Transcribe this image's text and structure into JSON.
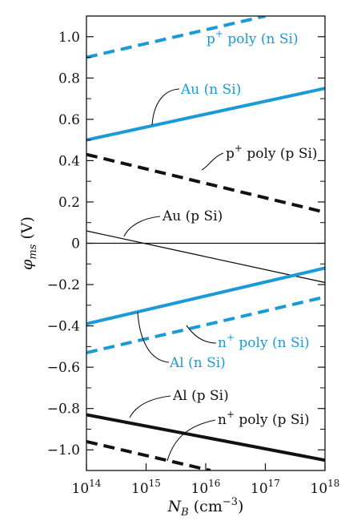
{
  "chart_data": {
    "type": "line",
    "xlabel": "N",
    "xlabel_sub": "B",
    "xlabel_unit_base": " (cm",
    "xlabel_unit_exp": "−3",
    "xlabel_unit_close": ")",
    "ylabel_main": "φ",
    "ylabel_sub": "ms",
    "ylabel_unit": " (V)",
    "x_scale": "log",
    "xlim": [
      100000000000000.0,
      1e+18
    ],
    "ylim": [
      -1.1,
      1.1
    ],
    "grid": false,
    "x_ticks": [
      {
        "value": 100000000000000.0,
        "base": "10",
        "exp": "14"
      },
      {
        "value": 1000000000000000.0,
        "base": "10",
        "exp": "15"
      },
      {
        "value": 1e+16,
        "base": "10",
        "exp": "16"
      },
      {
        "value": 1e+17,
        "base": "10",
        "exp": "17"
      },
      {
        "value": 1e+18,
        "base": "10",
        "exp": "18"
      }
    ],
    "y_ticks": [
      {
        "value": 1.0,
        "label": "1.0"
      },
      {
        "value": 0.8,
        "label": "0.8"
      },
      {
        "value": 0.6,
        "label": "0.6"
      },
      {
        "value": 0.4,
        "label": "0.4"
      },
      {
        "value": 0.2,
        "label": "0.2"
      },
      {
        "value": 0,
        "label": "0"
      },
      {
        "value": -0.2,
        "label": "−0.2"
      },
      {
        "value": -0.4,
        "label": "−0.4"
      },
      {
        "value": -0.6,
        "label": "−0.6"
      },
      {
        "value": -0.8,
        "label": "−0.8"
      },
      {
        "value": -1.0,
        "label": "−1.0"
      }
    ],
    "y_minor_step": 0.1,
    "zero_line": true,
    "colors": {
      "black": "#111111",
      "blue": "#1a9ad6"
    },
    "series": [
      {
        "label_parts": [
          {
            "t": "p"
          },
          {
            "t": "+",
            "sup": true
          },
          {
            "t": " poly (n Si)"
          }
        ],
        "color": "blue",
        "style": "dashed",
        "weight": "thick",
        "x": [
          100000000000000.0,
          1e+17
        ],
        "y": [
          0.9,
          1.1
        ]
      },
      {
        "label_parts": [
          {
            "t": "Au (n Si)"
          }
        ],
        "color": "blue",
        "style": "solid",
        "weight": "thick",
        "x": [
          100000000000000.0,
          1e+18
        ],
        "y": [
          0.5,
          0.75
        ]
      },
      {
        "label_parts": [
          {
            "t": "p"
          },
          {
            "t": "+",
            "sup": true
          },
          {
            "t": " poly (p Si)"
          }
        ],
        "color": "black",
        "style": "dashed",
        "weight": "thick",
        "x": [
          100000000000000.0,
          1e+18
        ],
        "y": [
          0.43,
          0.15
        ]
      },
      {
        "label_parts": [
          {
            "t": "Au (p Si)"
          }
        ],
        "color": "black",
        "style": "solid",
        "weight": "thin",
        "x": [
          100000000000000.0,
          1e+18
        ],
        "y": [
          0.06,
          -0.19
        ]
      },
      {
        "label_parts": [
          {
            "t": "Al (n Si)"
          }
        ],
        "color": "blue",
        "style": "solid",
        "weight": "thick",
        "x": [
          100000000000000.0,
          1e+18
        ],
        "y": [
          -0.39,
          -0.12
        ]
      },
      {
        "label_parts": [
          {
            "t": "n"
          },
          {
            "t": "+",
            "sup": true
          },
          {
            "t": " poly (n Si)"
          }
        ],
        "color": "blue",
        "style": "dashed",
        "weight": "thick",
        "x": [
          100000000000000.0,
          1e+18
        ],
        "y": [
          -0.53,
          -0.26
        ]
      },
      {
        "label_parts": [
          {
            "t": "Al (p Si)"
          }
        ],
        "color": "black",
        "style": "solid",
        "weight": "thick",
        "x": [
          100000000000000.0,
          1e+18
        ],
        "y": [
          -0.83,
          -1.05
        ]
      },
      {
        "label_parts": [
          {
            "t": "n"
          },
          {
            "t": "+",
            "sup": true
          },
          {
            "t": " poly (p Si)"
          }
        ],
        "color": "black",
        "style": "dashed",
        "weight": "thick",
        "x": [
          100000000000000.0,
          1.2e+16
        ],
        "y": [
          -0.96,
          -1.1
        ]
      }
    ]
  }
}
